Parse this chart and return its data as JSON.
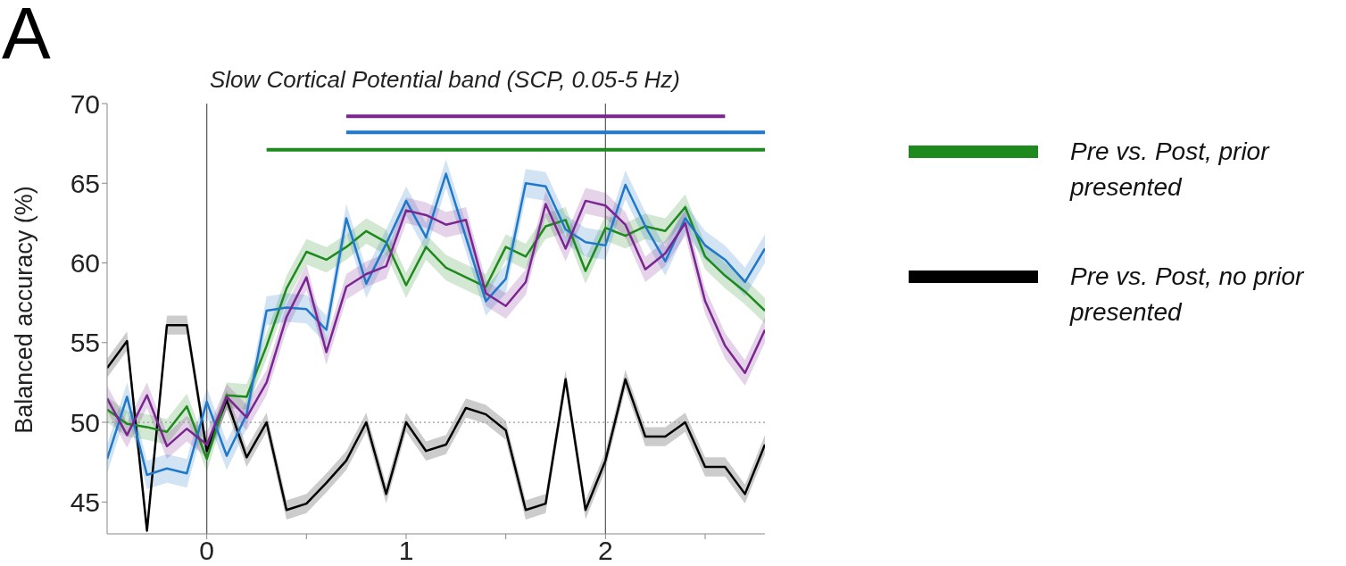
{
  "chart_data": {
    "type": "line",
    "title": "Slow Cortical Potential band (SCP, 0.05-5 Hz)",
    "ylabel": "Balanced accuracy (%)",
    "annotations": [
      "A"
    ],
    "x": [
      -0.5,
      -0.4,
      -0.3,
      -0.2,
      -0.1,
      0,
      0.1,
      0.2,
      0.3,
      0.4,
      0.5,
      0.6,
      0.7,
      0.8,
      0.9,
      1.0,
      1.1,
      1.2,
      1.3,
      1.4,
      1.5,
      1.6,
      1.7,
      1.8,
      1.9,
      2.0,
      2.1,
      2.2,
      2.3,
      2.4,
      2.5,
      2.6,
      2.7,
      2.8
    ],
    "xlim": [
      -0.5,
      2.8
    ],
    "xticks": [
      0,
      {
        "value": 0.5,
        "label": null
      },
      1,
      {
        "value": 1.5,
        "label": null
      },
      2,
      {
        "value": 2.5,
        "label": null
      }
    ],
    "ylim": [
      43,
      70
    ],
    "yticks": [
      45,
      50,
      55,
      60,
      65,
      70
    ],
    "marker": "none",
    "line_style": "solid",
    "legend": "right",
    "ref_lines": [
      {
        "axis": "x",
        "value": 0,
        "color": "#555555",
        "line_style": "solid"
      },
      {
        "axis": "x",
        "value": 2,
        "color": "#555555",
        "line_style": "solid"
      },
      {
        "axis": "y",
        "value": 50,
        "color": "#999999",
        "line_style": "dotted"
      }
    ],
    "series": [
      {
        "name": "Pre vs. Post, no prior presented",
        "color": "#000000",
        "values": [
          53.4,
          55.1,
          43.2,
          56.1,
          56.1,
          48.2,
          51.4,
          47.8,
          50.0,
          44.5,
          44.9,
          46.2,
          47.6,
          50.0,
          45.5,
          50.0,
          48.2,
          48.6,
          50.9,
          50.5,
          49.5,
          44.5,
          44.9,
          52.7,
          44.5,
          47.6,
          52.7,
          49.1,
          49.1,
          50.0,
          47.2,
          47.2,
          45.5,
          48.6
        ],
        "lower": [
          52.8,
          54.5,
          43.0,
          55.5,
          55.5,
          47.6,
          50.8,
          47.2,
          49.4,
          43.9,
          44.3,
          45.6,
          47.0,
          49.4,
          44.9,
          49.4,
          47.6,
          48.0,
          50.3,
          49.9,
          48.9,
          43.9,
          44.3,
          52.1,
          43.9,
          47.0,
          52.1,
          48.5,
          48.5,
          49.4,
          46.6,
          46.6,
          44.9,
          48.0
        ],
        "upper": [
          54.0,
          55.7,
          43.8,
          56.7,
          56.7,
          48.8,
          52.0,
          48.4,
          50.6,
          45.1,
          45.5,
          46.8,
          48.2,
          50.6,
          46.1,
          50.6,
          48.8,
          49.2,
          51.5,
          51.1,
          50.1,
          45.1,
          45.5,
          53.3,
          45.1,
          48.2,
          53.3,
          49.7,
          49.7,
          50.6,
          47.8,
          47.8,
          46.1,
          49.2
        ]
      },
      {
        "name": "Pre vs. Post, prior presented",
        "color": "#1e8a1e",
        "values": [
          50.8,
          49.9,
          49.7,
          49.4,
          51.0,
          47.7,
          51.7,
          51.6,
          54.8,
          58.4,
          60.7,
          60.2,
          61.0,
          62.0,
          61.3,
          58.6,
          61.0,
          59.7,
          59.1,
          58.5,
          61.0,
          60.4,
          62.3,
          62.7,
          59.5,
          62.2,
          61.7,
          62.3,
          62.0,
          63.5,
          60.4,
          59.2,
          58.2,
          57.0
        ],
        "lower": [
          50.0,
          49.1,
          48.9,
          48.6,
          50.2,
          46.9,
          50.9,
          50.8,
          54.0,
          57.6,
          59.9,
          59.4,
          60.2,
          61.2,
          60.5,
          57.8,
          60.2,
          58.9,
          58.3,
          57.7,
          60.2,
          59.6,
          61.5,
          61.9,
          58.7,
          61.4,
          60.9,
          61.5,
          61.2,
          62.7,
          59.6,
          58.4,
          57.4,
          56.2
        ],
        "upper": [
          51.6,
          50.7,
          50.5,
          50.2,
          51.8,
          48.5,
          52.5,
          52.4,
          55.6,
          59.2,
          61.5,
          61.0,
          61.8,
          62.8,
          62.1,
          59.4,
          61.8,
          60.5,
          59.9,
          59.3,
          61.8,
          61.2,
          63.1,
          63.5,
          60.3,
          63.0,
          62.5,
          63.1,
          62.8,
          64.3,
          61.2,
          60.0,
          59.0,
          57.8
        ]
      },
      {
        "color": "#1f78c8",
        "values": [
          47.7,
          51.6,
          46.7,
          47.1,
          46.8,
          51.3,
          47.9,
          50.5,
          57.0,
          57.2,
          57.1,
          55.8,
          62.8,
          58.7,
          61.2,
          63.9,
          61.6,
          65.6,
          61.6,
          57.6,
          59.0,
          65.0,
          64.8,
          62.1,
          61.3,
          61.1,
          64.9,
          62.3,
          60.1,
          62.8,
          61.1,
          60.2,
          58.8,
          60.9
        ],
        "lower": [
          46.8,
          50.7,
          45.8,
          46.2,
          45.9,
          50.4,
          47.0,
          49.6,
          56.1,
          56.3,
          56.2,
          54.9,
          61.9,
          57.8,
          60.3,
          63.0,
          60.7,
          64.7,
          60.7,
          56.7,
          58.1,
          64.1,
          63.9,
          61.2,
          60.4,
          60.2,
          64.0,
          61.4,
          59.2,
          61.9,
          60.2,
          59.3,
          57.9,
          60.0
        ],
        "upper": [
          48.6,
          52.5,
          47.6,
          48.0,
          47.7,
          52.2,
          48.8,
          51.4,
          57.9,
          58.1,
          58.0,
          56.7,
          63.7,
          59.6,
          62.1,
          64.8,
          62.5,
          66.5,
          62.5,
          58.5,
          59.9,
          65.9,
          65.7,
          63.0,
          62.2,
          62.0,
          65.8,
          63.2,
          61.0,
          63.7,
          62.0,
          61.1,
          59.7,
          61.8
        ]
      },
      {
        "color": "#7a2590",
        "values": [
          51.5,
          49.2,
          51.7,
          48.5,
          49.6,
          48.6,
          51.6,
          50.3,
          52.5,
          56.6,
          59.1,
          54.4,
          58.5,
          59.3,
          59.8,
          63.3,
          63.0,
          62.4,
          62.7,
          58.1,
          57.3,
          58.8,
          63.7,
          60.9,
          63.9,
          63.6,
          62.4,
          59.6,
          60.6,
          62.5,
          57.6,
          54.8,
          53.1,
          55.8
        ],
        "lower": [
          50.7,
          48.4,
          50.9,
          47.7,
          48.8,
          47.8,
          50.8,
          49.5,
          51.7,
          55.8,
          58.3,
          53.6,
          57.7,
          58.5,
          59.0,
          62.5,
          62.2,
          61.6,
          61.9,
          57.3,
          56.5,
          58.0,
          62.9,
          60.1,
          63.1,
          62.8,
          61.6,
          58.8,
          59.8,
          61.7,
          56.8,
          54.0,
          52.3,
          55.0
        ],
        "upper": [
          52.3,
          50.0,
          52.5,
          49.3,
          50.4,
          49.4,
          52.4,
          51.1,
          53.3,
          57.4,
          59.9,
          55.2,
          59.3,
          60.1,
          60.6,
          64.1,
          63.8,
          63.2,
          63.5,
          58.9,
          58.1,
          59.6,
          64.5,
          61.7,
          64.7,
          64.4,
          63.2,
          60.4,
          61.4,
          63.3,
          58.4,
          55.6,
          53.9,
          56.6
        ]
      },
      {
        "type": "line",
        "color": "#7a2590",
        "x": [
          0.7,
          2.6
        ],
        "values": [
          69.2,
          69.2
        ]
      },
      {
        "type": "line",
        "color": "#1f78c8",
        "x": [
          0.7,
          2.8
        ],
        "values": [
          68.2,
          68.2
        ]
      },
      {
        "type": "line",
        "color": "#1e8a1e",
        "x": [
          0.3,
          2.8
        ],
        "values": [
          67.1,
          67.1
        ]
      }
    ]
  }
}
